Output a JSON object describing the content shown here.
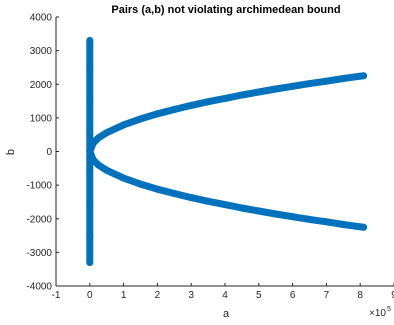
{
  "chart_data": {
    "type": "scatter",
    "title": "Pairs (a,b) not violating archimedean bound",
    "xlabel": "a",
    "ylabel": "b",
    "xlim": [
      -1,
      9
    ],
    "ylim": [
      -4000,
      4000
    ],
    "x_exponent_label": "×10",
    "x_exponent_value": "5",
    "x_ticks": [
      -1,
      0,
      1,
      2,
      3,
      4,
      5,
      6,
      7,
      8,
      9
    ],
    "x_tick_labels": [
      "-1",
      "0",
      "1",
      "2",
      "3",
      "4",
      "5",
      "6",
      "7",
      "8",
      "9"
    ],
    "y_ticks": [
      -4000,
      -3000,
      -2000,
      -1000,
      0,
      1000,
      2000,
      3000,
      4000
    ],
    "y_tick_labels": [
      "-4000",
      "-3000",
      "-2000",
      "-1000",
      "0",
      "1000",
      "2000",
      "3000",
      "4000"
    ],
    "grid": false,
    "marker_color": "#0072BD",
    "series": [
      {
        "points": [
          [
            0,
            -3300
          ],
          [
            0,
            -2500
          ],
          [
            0,
            -1500
          ],
          [
            0,
            -500
          ],
          [
            0,
            0
          ],
          [
            0,
            500
          ],
          [
            0,
            1500
          ],
          [
            0,
            2500
          ],
          [
            0,
            3300
          ],
          [
            0.1,
            250
          ],
          [
            0.25,
            400
          ],
          [
            0.5,
            560
          ],
          [
            1,
            790
          ],
          [
            1.5,
            970
          ],
          [
            2,
            1120
          ],
          [
            2.5,
            1250
          ],
          [
            3,
            1370
          ],
          [
            3.5,
            1480
          ],
          [
            4,
            1580
          ],
          [
            4.5,
            1680
          ],
          [
            5,
            1770
          ],
          [
            5.5,
            1860
          ],
          [
            6,
            1940
          ],
          [
            6.5,
            2020
          ],
          [
            7,
            2090
          ],
          [
            7.5,
            2170
          ],
          [
            8,
            2240
          ],
          [
            8.1,
            2250
          ],
          [
            0.1,
            -250
          ],
          [
            0.25,
            -400
          ],
          [
            0.5,
            -560
          ],
          [
            1,
            -790
          ],
          [
            1.5,
            -970
          ],
          [
            2,
            -1120
          ],
          [
            2.5,
            -1250
          ],
          [
            3,
            -1370
          ],
          [
            3.5,
            -1480
          ],
          [
            4,
            -1580
          ],
          [
            4.5,
            -1680
          ],
          [
            5,
            -1770
          ],
          [
            5.5,
            -1860
          ],
          [
            6,
            -1940
          ],
          [
            6.5,
            -2020
          ],
          [
            7,
            -2090
          ],
          [
            7.5,
            -2170
          ],
          [
            8,
            -2240
          ],
          [
            8.1,
            -2250
          ]
        ]
      }
    ]
  }
}
